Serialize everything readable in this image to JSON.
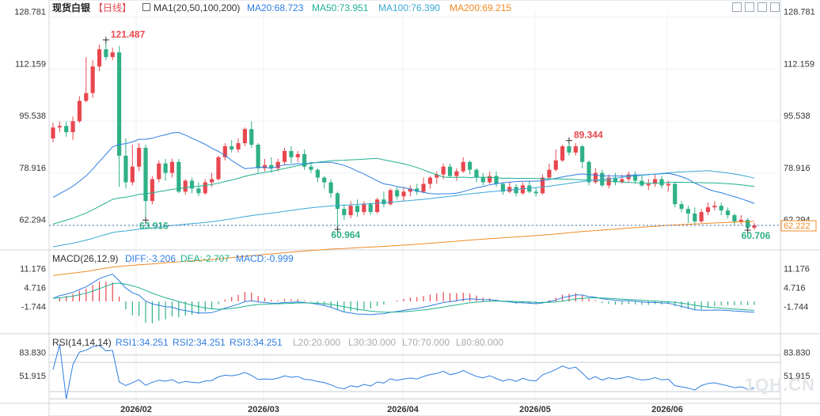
{
  "header": {
    "title": "现货白银",
    "period": "【日线】",
    "ma_label": "MA1(20,50,100,200)",
    "ma20": "MA20:68.723",
    "ma50": "MA50:73.951",
    "ma100": "MA100:76.390",
    "ma200": "MA200:69.215"
  },
  "macd_header": {
    "label": "MACD(26,12,9)",
    "diff": "DIFF:-3.206",
    "dea": "DEA:-2.707",
    "macd": "MACD:-0.999"
  },
  "rsi_header": {
    "label": "RSI(14,14,14)",
    "rsi1": "RSI1:34.251",
    "rsi2": "RSI2:34.251",
    "rsi3": "RSI3:34.251",
    "l20": "L20:20.000",
    "l30": "L30:30.000",
    "l70": "L70:70.000",
    "l80": "L80:80.000"
  },
  "watermark": "1QH.CN",
  "colors": {
    "up": "#e8474f",
    "down": "#2fb087",
    "ma20": "#2f7de1",
    "ma50": "#20b090",
    "ma100": "#39a8d6",
    "ma200": "#f08a25",
    "last": "#f08a25"
  },
  "chart_data": {
    "type": "candlestick",
    "y_ticks": [
      "128.781",
      "112.159",
      "95.538",
      "78.916",
      "62.294"
    ],
    "ylim": [
      54.9,
      131.2
    ],
    "x_ticks": [
      "2026/02",
      "2026/03",
      "2026/04",
      "2026/05",
      "2026/06"
    ],
    "last_price": "62.222",
    "annotations": [
      {
        "label": "121.487",
        "kind": "high"
      },
      {
        "label": "63.916",
        "kind": "low"
      },
      {
        "label": "60.964",
        "kind": "low"
      },
      {
        "label": "89.344",
        "kind": "high"
      },
      {
        "label": "60.706",
        "kind": "low"
      }
    ],
    "candles": [
      [
        90.0,
        93.5,
        95.0,
        88.8
      ],
      [
        93.5,
        94.0,
        95.5,
        92.0
      ],
      [
        94.0,
        92.0,
        95.5,
        90.5
      ],
      [
        92.0,
        95.5,
        97.0,
        89.5
      ],
      [
        95.5,
        102.0,
        103.5,
        95.0
      ],
      [
        102.0,
        104.5,
        116.0,
        101.5
      ],
      [
        104.5,
        113.0,
        115.0,
        103.0
      ],
      [
        113.0,
        118.5,
        120.0,
        111.5
      ],
      [
        118.5,
        116.0,
        121.487,
        115.0
      ],
      [
        116.0,
        117.5,
        119.0,
        115.0
      ],
      [
        117.5,
        84.5,
        119.5,
        74.5
      ],
      [
        84.5,
        76.0,
        90.0,
        74.0
      ],
      [
        76.0,
        81.0,
        88.0,
        75.0
      ],
      [
        81.0,
        87.0,
        88.5,
        79.5
      ],
      [
        87.0,
        70.0,
        88.0,
        63.916
      ],
      [
        70.0,
        77.0,
        78.0,
        69.0
      ],
      [
        77.0,
        82.0,
        83.0,
        76.0
      ],
      [
        82.0,
        79.0,
        83.5,
        76.5
      ],
      [
        79.0,
        82.5,
        83.5,
        77.5
      ],
      [
        82.5,
        73.0,
        83.5,
        72.5
      ],
      [
        73.0,
        76.5,
        77.0,
        72.0
      ],
      [
        76.5,
        74.0,
        77.5,
        72.5
      ],
      [
        74.0,
        72.5,
        76.0,
        71.5
      ],
      [
        72.5,
        76.0,
        77.0,
        72.0
      ],
      [
        76.0,
        77.0,
        79.0,
        74.5
      ],
      [
        77.0,
        84.0,
        84.5,
        76.5
      ],
      [
        84.0,
        87.5,
        88.5,
        83.0
      ],
      [
        87.5,
        86.5,
        89.5,
        85.5
      ],
      [
        86.5,
        88.5,
        90.0,
        85.5
      ],
      [
        88.5,
        93.0,
        93.5,
        87.5
      ],
      [
        93.0,
        88.0,
        95.5,
        87.0
      ],
      [
        88.0,
        80.5,
        88.5,
        79.0
      ],
      [
        80.5,
        81.5,
        83.5,
        79.5
      ],
      [
        81.5,
        80.5,
        84.0,
        79.0
      ],
      [
        80.5,
        82.5,
        83.5,
        79.5
      ],
      [
        82.5,
        86.0,
        87.0,
        81.5
      ],
      [
        86.0,
        84.0,
        87.5,
        82.0
      ],
      [
        84.0,
        85.0,
        86.0,
        82.5
      ],
      [
        85.0,
        81.0,
        86.5,
        80.0
      ],
      [
        81.0,
        80.0,
        82.5,
        79.0
      ],
      [
        80.0,
        77.5,
        80.5,
        76.0
      ],
      [
        77.5,
        76.0,
        78.0,
        74.0
      ],
      [
        76.0,
        72.5,
        77.0,
        71.0
      ],
      [
        72.5,
        67.5,
        73.0,
        60.964
      ],
      [
        67.5,
        65.5,
        69.0,
        64.0
      ],
      [
        65.5,
        68.5,
        70.0,
        64.5
      ],
      [
        68.5,
        66.5,
        70.5,
        65.0
      ],
      [
        66.5,
        69.0,
        70.0,
        65.5
      ],
      [
        69.0,
        66.5,
        69.5,
        65.5
      ],
      [
        66.5,
        70.5,
        71.0,
        66.0
      ],
      [
        70.5,
        69.0,
        73.0,
        68.0
      ],
      [
        69.0,
        73.5,
        74.0,
        68.5
      ],
      [
        73.5,
        71.5,
        74.5,
        70.5
      ],
      [
        71.5,
        73.0,
        74.5,
        70.0
      ],
      [
        73.0,
        74.0,
        75.0,
        71.5
      ],
      [
        74.0,
        73.0,
        75.5,
        72.0
      ],
      [
        73.0,
        75.5,
        77.5,
        72.5
      ],
      [
        75.5,
        77.5,
        78.0,
        74.0
      ],
      [
        77.5,
        78.5,
        79.5,
        75.5
      ],
      [
        78.5,
        81.0,
        82.0,
        77.0
      ],
      [
        81.0,
        78.0,
        82.0,
        77.5
      ],
      [
        78.0,
        79.5,
        80.5,
        76.5
      ],
      [
        79.5,
        82.5,
        84.0,
        79.0
      ],
      [
        82.5,
        80.0,
        83.0,
        78.5
      ],
      [
        80.0,
        77.5,
        80.5,
        76.0
      ],
      [
        77.5,
        76.0,
        79.0,
        75.0
      ],
      [
        76.0,
        78.0,
        79.5,
        75.5
      ],
      [
        78.0,
        75.5,
        79.5,
        74.5
      ],
      [
        75.5,
        73.0,
        76.0,
        72.0
      ],
      [
        73.0,
        74.5,
        76.0,
        72.5
      ],
      [
        74.5,
        72.5,
        75.5,
        71.5
      ],
      [
        72.5,
        75.0,
        76.0,
        72.0
      ],
      [
        75.0,
        73.0,
        76.5,
        72.5
      ],
      [
        73.0,
        72.5,
        74.5,
        71.5
      ],
      [
        72.5,
        77.5,
        78.5,
        72.0
      ],
      [
        77.5,
        80.0,
        82.0,
        77.0
      ],
      [
        80.0,
        83.0,
        86.5,
        79.5
      ],
      [
        83.0,
        87.5,
        88.0,
        82.5
      ],
      [
        87.5,
        85.5,
        89.344,
        84.5
      ],
      [
        85.5,
        87.5,
        88.5,
        84.5
      ],
      [
        87.5,
        82.5,
        88.0,
        80.5
      ],
      [
        82.5,
        76.0,
        83.0,
        75.0
      ],
      [
        76.0,
        79.0,
        80.5,
        75.5
      ],
      [
        79.0,
        75.0,
        80.0,
        74.5
      ],
      [
        75.0,
        77.5,
        78.5,
        74.0
      ],
      [
        77.5,
        76.0,
        79.0,
        75.0
      ],
      [
        76.0,
        77.0,
        78.5,
        75.5
      ],
      [
        77.0,
        78.5,
        79.5,
        76.0
      ],
      [
        78.5,
        76.5,
        79.5,
        75.5
      ],
      [
        76.5,
        75.0,
        78.0,
        74.5
      ],
      [
        75.0,
        75.5,
        77.0,
        73.5
      ],
      [
        75.5,
        77.0,
        78.5,
        74.5
      ],
      [
        77.0,
        75.0,
        78.0,
        74.0
      ],
      [
        75.0,
        75.5,
        76.5,
        73.0
      ],
      [
        75.5,
        69.0,
        76.0,
        68.0
      ],
      [
        69.0,
        67.5,
        70.0,
        66.5
      ],
      [
        67.5,
        66.0,
        68.5,
        63.0
      ],
      [
        66.0,
        63.5,
        68.0,
        62.5
      ],
      [
        63.5,
        66.5,
        67.5,
        63.0
      ],
      [
        66.5,
        68.0,
        69.5,
        65.5
      ],
      [
        68.0,
        68.5,
        70.0,
        67.0
      ],
      [
        68.5,
        67.0,
        69.5,
        65.5
      ],
      [
        67.0,
        65.5,
        68.0,
        64.5
      ],
      [
        65.5,
        63.5,
        66.0,
        62.5
      ],
      [
        63.5,
        64.0,
        65.5,
        62.5
      ],
      [
        64.0,
        61.5,
        64.5,
        60.706
      ],
      [
        61.5,
        62.222,
        63.0,
        60.8
      ]
    ],
    "macd": {
      "yticks": [
        "11.176",
        "4.716",
        "-1.744"
      ],
      "ylim": [
        -10.5,
        13.8
      ]
    },
    "rsi": {
      "yticks": [
        "83.830",
        "51.915"
      ],
      "ylim": [
        16,
        94
      ],
      "levels": [
        80,
        70,
        30,
        20
      ]
    }
  }
}
